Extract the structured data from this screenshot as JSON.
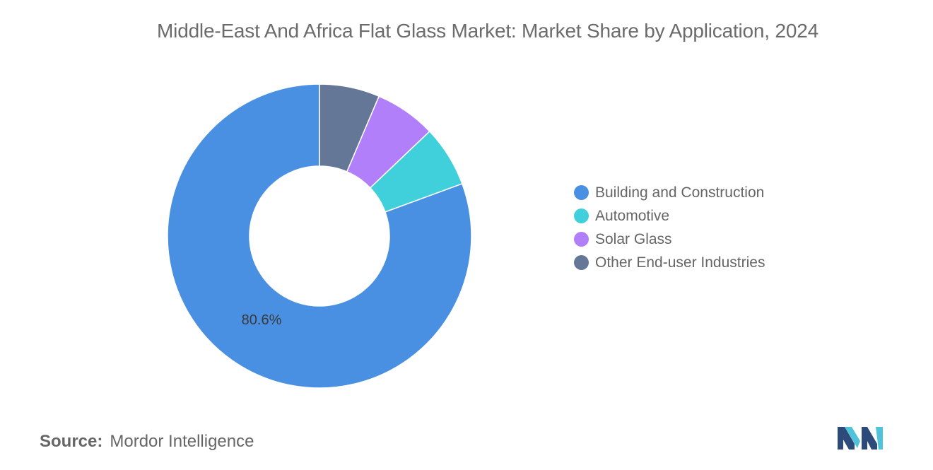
{
  "title": "Middle-East And Africa Flat Glass Market: Market Share by Application, 2024",
  "source": {
    "label": "Source:",
    "value": "Mordor Intelligence"
  },
  "logo": {
    "name": "mordor-intelligence-logo",
    "colors": [
      "#2c4a7a",
      "#4fc3d9"
    ]
  },
  "chart_data": {
    "type": "pie",
    "style": "donut",
    "series": [
      {
        "name": "Building and Construction",
        "value": 80.6,
        "color": "#4a90e2",
        "label": "80.6%"
      },
      {
        "name": "Automotive",
        "value": 6.5,
        "color": "#40d0db"
      },
      {
        "name": "Solar Glass",
        "value": 6.5,
        "color": "#b27ffb"
      },
      {
        "name": "Other End-user Industries",
        "value": 6.4,
        "color": "#647796"
      }
    ],
    "legend_position": "right"
  }
}
